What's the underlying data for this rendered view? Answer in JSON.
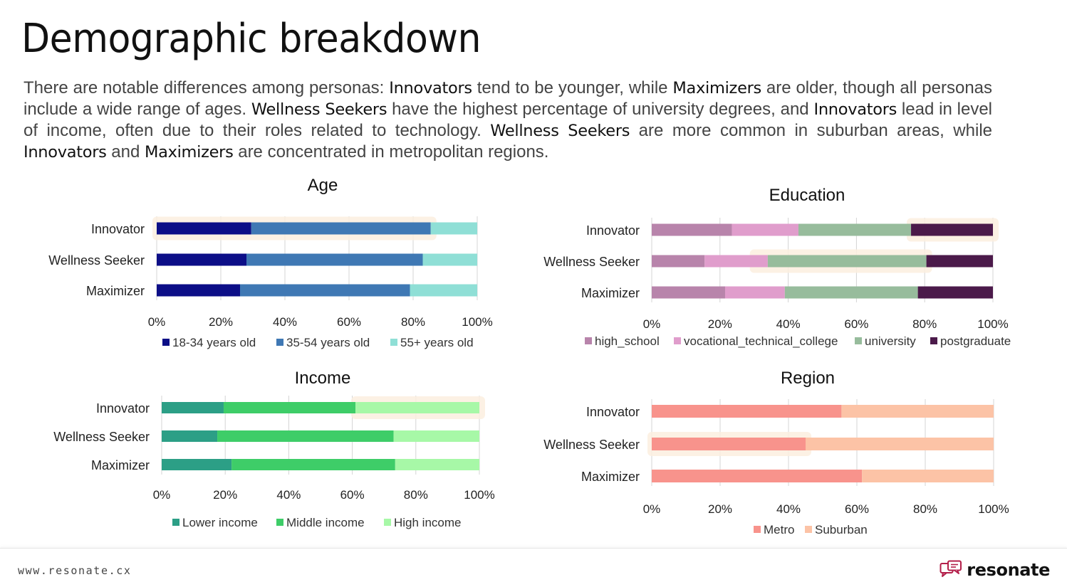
{
  "page": {
    "title": "Demographic breakdown",
    "intro": [
      {
        "t": "There are notable differences among personas: "
      },
      {
        "t": "Innovators",
        "b": true
      },
      {
        "t": " tend to be younger, while "
      },
      {
        "t": "Maximizers",
        "b": true
      },
      {
        "t": " are older, though all personas include a wide range of ages. "
      },
      {
        "t": "Wellness Seekers",
        "b": true
      },
      {
        "t": " have the highest percentage of university degrees, and "
      },
      {
        "t": "Innovators",
        "b": true
      },
      {
        "t": " lead in level of income, often due to their roles related to technology. "
      },
      {
        "t": "Wellness Seekers",
        "b": true
      },
      {
        "t": " are more common in suburban areas, while "
      },
      {
        "t": "Innovators",
        "b": true
      },
      {
        "t": " and "
      },
      {
        "t": "Maximizers",
        "b": true
      },
      {
        "t": " are concentrated in metropolitan regions."
      }
    ]
  },
  "footer": {
    "url": "www.resonate.cx",
    "brand": "resonate",
    "brand_icon": "chat-bubbles-icon"
  },
  "chart_data": [
    {
      "id": "age",
      "type": "bar",
      "stacked": true,
      "orientation": "horizontal",
      "title": "Age",
      "categories": [
        "Innovator",
        "Wellness Seeker",
        "Maximizer"
      ],
      "series": [
        {
          "name": "18-34 years old",
          "color": "#0c0e87",
          "values": [
            29.5,
            28,
            26
          ]
        },
        {
          "name": "35-54 years old",
          "color": "#3f78b4",
          "values": [
            56,
            55,
            53
          ]
        },
        {
          "name": "55+ years old",
          "color": "#8fdfd6",
          "values": [
            14.5,
            17,
            21
          ]
        }
      ],
      "highlights": [
        {
          "row": 0,
          "from_pct": 0,
          "to_pct": 85.5
        }
      ],
      "xlim": [
        0,
        100
      ],
      "xticks": [
        "0%",
        "20%",
        "40%",
        "60%",
        "80%",
        "100%"
      ],
      "grid": true,
      "legend": "bottom"
    },
    {
      "id": "education",
      "type": "bar",
      "stacked": true,
      "orientation": "horizontal",
      "title": "Education",
      "categories": [
        "Innovator",
        "Wellness Seeker",
        "Maximizer"
      ],
      "series": [
        {
          "name": "high_school",
          "color": "#b884ab",
          "values": [
            23.5,
            15.5,
            21.5
          ]
        },
        {
          "name": "vocational_technical_college",
          "color": "#e09dcc",
          "values": [
            19.5,
            18.5,
            17.5
          ]
        },
        {
          "name": "university",
          "color": "#97bc9c",
          "values": [
            33,
            46.5,
            39
          ]
        },
        {
          "name": "postgraduate",
          "color": "#4b1a4a",
          "values": [
            24,
            19.5,
            22
          ]
        }
      ],
      "highlights": [
        {
          "row": 0,
          "from_pct": 76,
          "to_pct": 100
        },
        {
          "row": 1,
          "from_pct": 30,
          "to_pct": 80.5
        }
      ],
      "xlim": [
        0,
        100
      ],
      "xticks": [
        "0%",
        "20%",
        "40%",
        "60%",
        "80%",
        "100%"
      ],
      "grid": true,
      "legend": "bottom"
    },
    {
      "id": "income",
      "type": "bar",
      "stacked": true,
      "orientation": "horizontal",
      "title": "Income",
      "categories": [
        "Innovator",
        "Wellness Seeker",
        "Maximizer"
      ],
      "series": [
        {
          "name": "Lower income",
          "color": "#2c9f86",
          "values": [
            19.5,
            17.5,
            22
          ]
        },
        {
          "name": "Middle income",
          "color": "#3ecd68",
          "values": [
            41.5,
            55.5,
            51.5
          ]
        },
        {
          "name": "High income",
          "color": "#a7f8a7",
          "values": [
            39,
            27,
            26.5
          ]
        }
      ],
      "highlights": [
        {
          "row": 0,
          "from_pct": 61,
          "to_pct": 100
        }
      ],
      "xlim": [
        0,
        100
      ],
      "xticks": [
        "0%",
        "20%",
        "40%",
        "60%",
        "80%",
        "100%"
      ],
      "grid": true,
      "legend": "bottom"
    },
    {
      "id": "region",
      "type": "bar",
      "stacked": true,
      "orientation": "horizontal",
      "title": "Region",
      "categories": [
        "Innovator",
        "Wellness Seeker",
        "Maximizer"
      ],
      "series": [
        {
          "name": "Metro",
          "color": "#f8938c",
          "values": [
            55.5,
            45,
            61.5
          ]
        },
        {
          "name": "Suburban",
          "color": "#fcc3a6",
          "values": [
            44.5,
            55,
            38.5
          ]
        }
      ],
      "highlights": [
        {
          "row": 1,
          "from_pct": 0,
          "to_pct": 45
        }
      ],
      "xlim": [
        0,
        100
      ],
      "xticks": [
        "0%",
        "20%",
        "40%",
        "60%",
        "80%",
        "100%"
      ],
      "grid": true,
      "legend": "bottom"
    }
  ]
}
